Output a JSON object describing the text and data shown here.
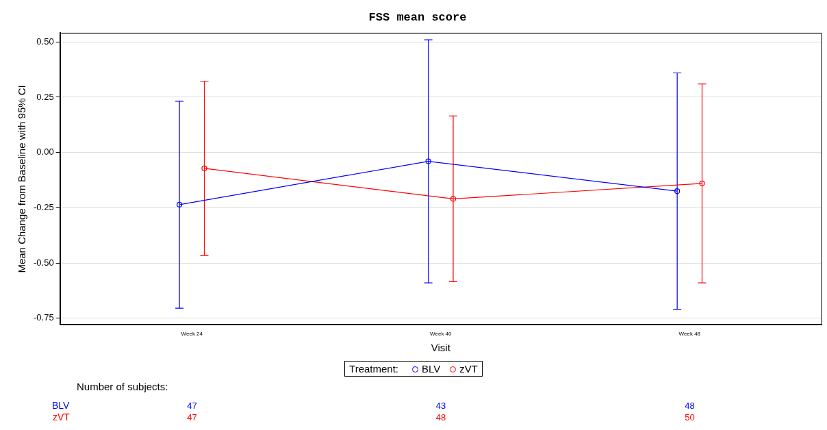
{
  "chart_data": {
    "type": "line",
    "title": "FSS mean score",
    "xlabel": "Visit",
    "ylabel": "Mean Change from Baseline with 95% CI",
    "legend_title": "Treatment:",
    "categories": [
      "Week 24",
      "Week 40",
      "Week 48"
    ],
    "series": [
      {
        "name": "BLV",
        "color": "#0000ff",
        "values": [
          -0.236,
          -0.04,
          -0.175
        ],
        "errors": [
          [
            -0.705,
            0.232
          ],
          [
            -0.59,
            0.51
          ],
          [
            -0.71,
            0.36
          ]
        ]
      },
      {
        "name": "zVT",
        "color": "#ff0000",
        "values": [
          -0.072,
          -0.21,
          -0.14
        ],
        "errors": [
          [
            -0.466,
            0.322
          ],
          [
            -0.585,
            0.165
          ],
          [
            -0.59,
            0.31
          ]
        ]
      }
    ],
    "ylim": [
      -0.78,
      0.54
    ],
    "yticks": [
      {
        "value": -0.75,
        "label": "-0.75"
      },
      {
        "value": -0.5,
        "label": "-0.50"
      },
      {
        "value": -0.25,
        "label": "-0.25"
      },
      {
        "value": 0,
        "label": "0.00"
      },
      {
        "value": 0.25,
        "label": "0.25"
      },
      {
        "value": 0.5,
        "label": "0.50"
      }
    ],
    "grid": "y",
    "legend": "bottom",
    "marker": "circle",
    "line_style": "solid",
    "annotations": [
      "Number of subjects:",
      "BLV",
      "47",
      "43",
      "48",
      "zVT",
      "47",
      "48",
      "50"
    ]
  }
}
